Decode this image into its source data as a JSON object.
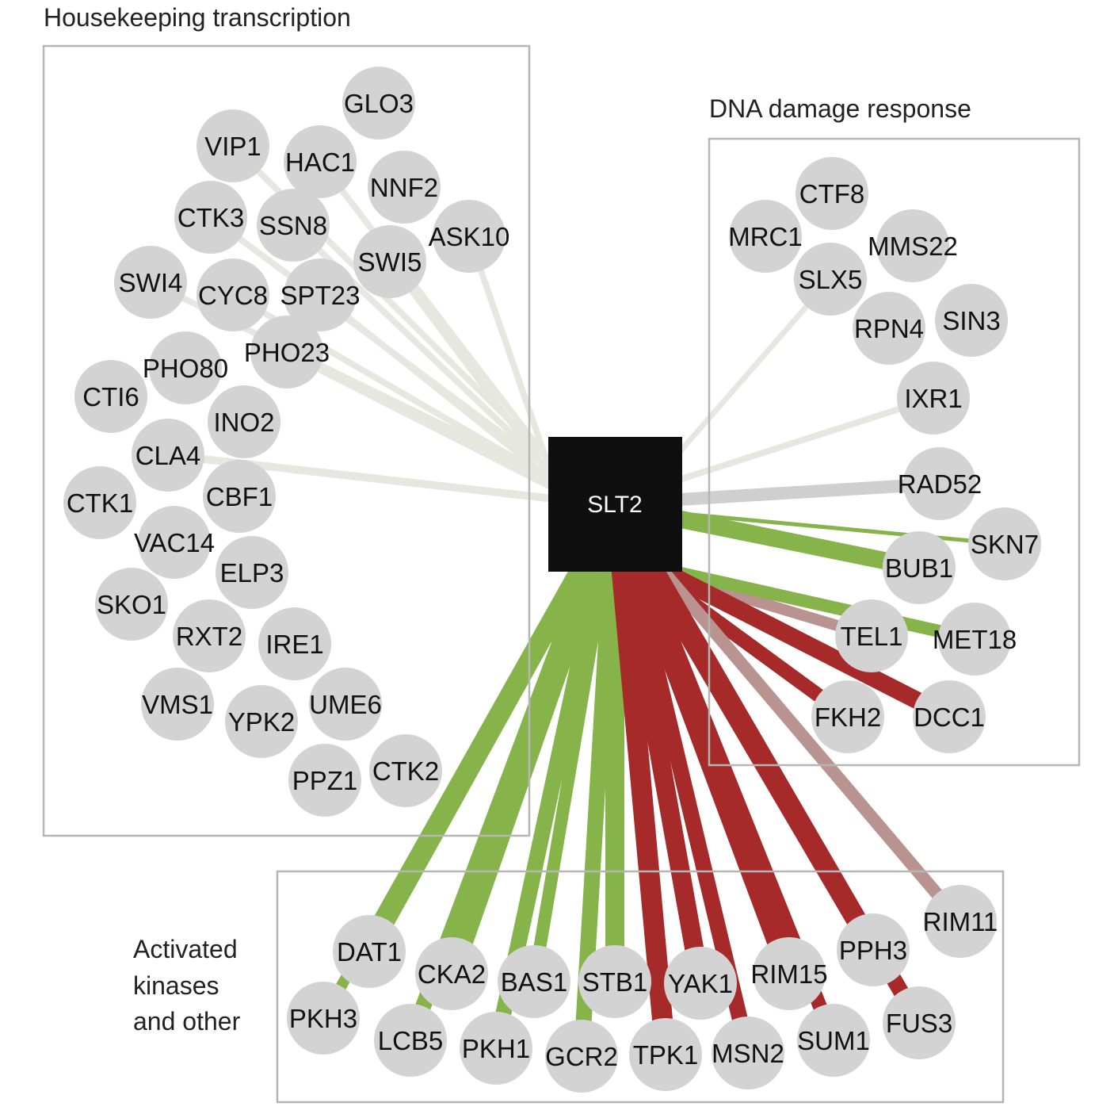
{
  "colors": {
    "positive_edge": "#86b34a",
    "negative_edge": "#a72a2a",
    "neutral_edge": "#e6e8df",
    "neutral_edge_dark": "#cfcfcf",
    "mixed_edge": "#b8938f",
    "node_fill": "#d3d3d3",
    "hub_fill": "#0f0f0f",
    "hub_text": "#ffffff",
    "box_stroke": "#b5b5b5"
  },
  "hub": {
    "label": "SLT2"
  },
  "groups": [
    {
      "id": "housekeeping",
      "title": "Housekeeping transcription"
    },
    {
      "id": "dna",
      "title": "DNA damage response"
    },
    {
      "id": "kinases",
      "title": "Activated kinases and other",
      "title_lines": [
        "Activated",
        "kinases",
        "and other"
      ]
    }
  ],
  "nodes": [
    {
      "label": "GLO3",
      "group": "housekeeping"
    },
    {
      "label": "VIP1",
      "group": "housekeeping",
      "edge": "neutral",
      "weight": 8
    },
    {
      "label": "HAC1",
      "group": "housekeeping",
      "edge": "neutral",
      "weight": 8
    },
    {
      "label": "NNF2",
      "group": "housekeeping"
    },
    {
      "label": "CTK3",
      "group": "housekeeping",
      "edge": "neutral",
      "weight": 8
    },
    {
      "label": "SSN8",
      "group": "housekeeping",
      "edge": "neutral",
      "weight": 8
    },
    {
      "label": "ASK10",
      "group": "housekeeping",
      "edge": "neutral",
      "weight": 8
    },
    {
      "label": "SWI5",
      "group": "housekeeping",
      "edge": "neutral",
      "weight": 8
    },
    {
      "label": "SWI4",
      "group": "housekeeping",
      "edge": "neutral",
      "weight": 8
    },
    {
      "label": "CYC8",
      "group": "housekeeping",
      "edge": "neutral",
      "weight": 8
    },
    {
      "label": "SPT23",
      "group": "housekeeping",
      "edge": "neutral",
      "weight": 8
    },
    {
      "label": "PHO80",
      "group": "housekeeping"
    },
    {
      "label": "PHO23",
      "group": "housekeeping",
      "edge": "neutral",
      "weight": 10
    },
    {
      "label": "CTI6",
      "group": "housekeeping"
    },
    {
      "label": "INO2",
      "group": "housekeeping"
    },
    {
      "label": "CLA4",
      "group": "housekeeping",
      "edge": "neutral",
      "weight": 10
    },
    {
      "label": "CTK1",
      "group": "housekeeping"
    },
    {
      "label": "CBF1",
      "group": "housekeeping"
    },
    {
      "label": "VAC14",
      "group": "housekeeping"
    },
    {
      "label": "ELP3",
      "group": "housekeeping"
    },
    {
      "label": "SKO1",
      "group": "housekeeping"
    },
    {
      "label": "RXT2",
      "group": "housekeeping"
    },
    {
      "label": "IRE1",
      "group": "housekeeping"
    },
    {
      "label": "VMS1",
      "group": "housekeeping"
    },
    {
      "label": "YPK2",
      "group": "housekeeping"
    },
    {
      "label": "UME6",
      "group": "housekeeping"
    },
    {
      "label": "PPZ1",
      "group": "housekeeping"
    },
    {
      "label": "CTK2",
      "group": "housekeeping"
    },
    {
      "label": "CTF8",
      "group": "dna"
    },
    {
      "label": "MRC1",
      "group": "dna"
    },
    {
      "label": "MMS22",
      "group": "dna"
    },
    {
      "label": "SLX5",
      "group": "dna",
      "edge": "neutral",
      "weight": 7
    },
    {
      "label": "RPN4",
      "group": "dna"
    },
    {
      "label": "SIN3",
      "group": "dna"
    },
    {
      "label": "IXR1",
      "group": "dna",
      "edge": "neutral",
      "weight": 8
    },
    {
      "label": "RAD52",
      "group": "dna",
      "edge": "neutral_dark",
      "weight": 16
    },
    {
      "label": "SKN7",
      "group": "dna",
      "edge": "positive",
      "weight": 5
    },
    {
      "label": "BUB1",
      "group": "dna",
      "edge": "positive",
      "weight": 22
    },
    {
      "label": "TEL1",
      "group": "dna",
      "edge": "mixed",
      "weight": 14
    },
    {
      "label": "MET18",
      "group": "dna",
      "edge": "positive",
      "weight": 16
    },
    {
      "label": "FKH2",
      "group": "dna",
      "edge": "negative",
      "weight": 18
    },
    {
      "label": "DCC1",
      "group": "dna",
      "edge": "negative",
      "weight": 22
    },
    {
      "label": "RIM11",
      "group": "kinases",
      "edge": "mixed",
      "weight": 16
    },
    {
      "label": "DAT1",
      "group": "kinases",
      "edge": "positive",
      "weight": 22
    },
    {
      "label": "CKA2",
      "group": "kinases",
      "edge": "positive",
      "weight": 26
    },
    {
      "label": "BAS1",
      "group": "kinases",
      "edge": "positive",
      "weight": 16
    },
    {
      "label": "STB1",
      "group": "kinases",
      "edge": "positive",
      "weight": 24
    },
    {
      "label": "YAK1",
      "group": "kinases",
      "edge": "negative",
      "weight": 24
    },
    {
      "label": "RIM15",
      "group": "kinases",
      "edge": "negative",
      "weight": 26
    },
    {
      "label": "PPH3",
      "group": "kinases",
      "edge": "negative",
      "weight": 24
    },
    {
      "label": "PKH3",
      "group": "kinases",
      "edge": "positive",
      "weight": 14
    },
    {
      "label": "LCB5",
      "group": "kinases",
      "edge": "positive",
      "weight": 20
    },
    {
      "label": "PKH1",
      "group": "kinases",
      "edge": "positive",
      "weight": 20
    },
    {
      "label": "GCR2",
      "group": "kinases",
      "edge": "positive",
      "weight": 20
    },
    {
      "label": "TPK1",
      "group": "kinases",
      "edge": "negative",
      "weight": 26
    },
    {
      "label": "MSN2",
      "group": "kinases",
      "edge": "negative",
      "weight": 20
    },
    {
      "label": "SUM1",
      "group": "kinases",
      "edge": "negative",
      "weight": 18
    },
    {
      "label": "FUS3",
      "group": "kinases",
      "edge": "negative",
      "weight": 20
    }
  ]
}
